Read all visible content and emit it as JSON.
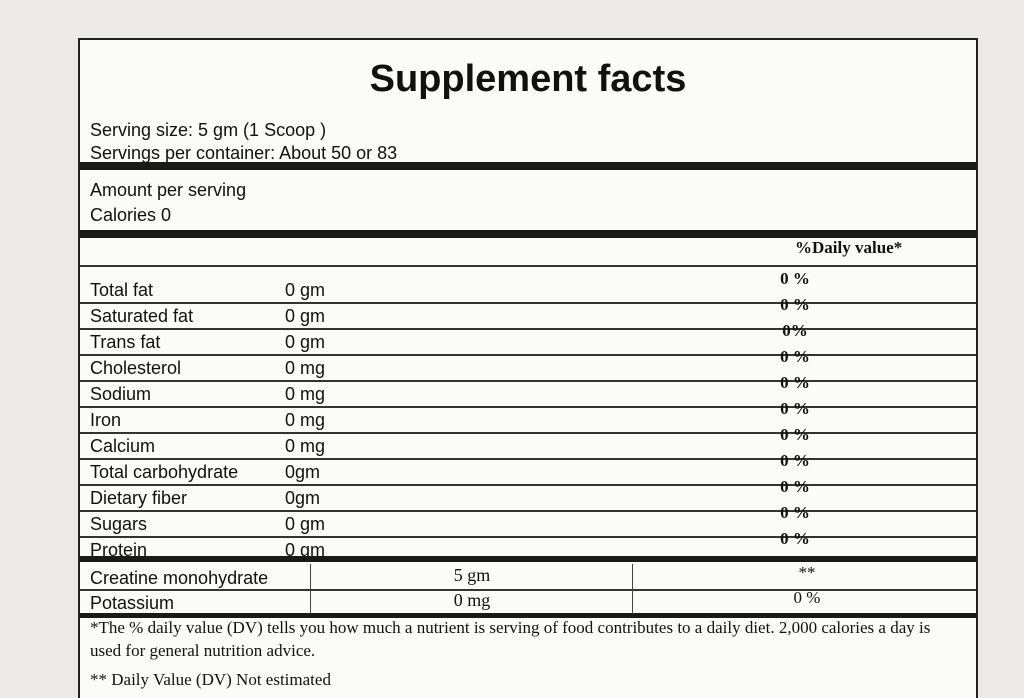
{
  "title": "Supplement facts",
  "serving_size": "Serving size: 5 gm (1 Scoop )",
  "servings_per_container": "Servings per container: About 50 or 83",
  "amount_per_serving": "Amount per serving",
  "calories": "Calories 0",
  "daily_value_header": "%Daily value*",
  "rows": [
    [
      "Total fat",
      "0 gm",
      "0 %"
    ],
    [
      "Saturated fat",
      "0 gm",
      "0 %"
    ],
    [
      "Trans fat",
      "0 gm",
      "0%"
    ],
    [
      "Cholesterol",
      "0 mg",
      "0 %"
    ],
    [
      "Sodium",
      "0 mg",
      "0 %"
    ],
    [
      "Iron",
      "0 mg",
      "0 %"
    ],
    [
      "Calcium",
      "0 mg",
      "0 %"
    ],
    [
      "Total carbohydrate",
      "0gm",
      "0 %"
    ],
    [
      "Dietary fiber",
      "0gm",
      "0 %"
    ],
    [
      "Sugars",
      "0 gm",
      "0 %"
    ],
    [
      "Protein",
      "0 gm",
      "0 %"
    ]
  ],
  "extra_rows": [
    [
      "Creatine monohydrate",
      "5 gm",
      "**"
    ],
    [
      "Potassium",
      "0 mg",
      "0 %"
    ]
  ],
  "footnotes": [
    "*The % daily value (DV) tells you how much a nutrient is serving of food contributes to a daily diet. 2,000 calories a day is used for general nutrition advice.",
    "** Daily Value (DV) Not estimated"
  ]
}
